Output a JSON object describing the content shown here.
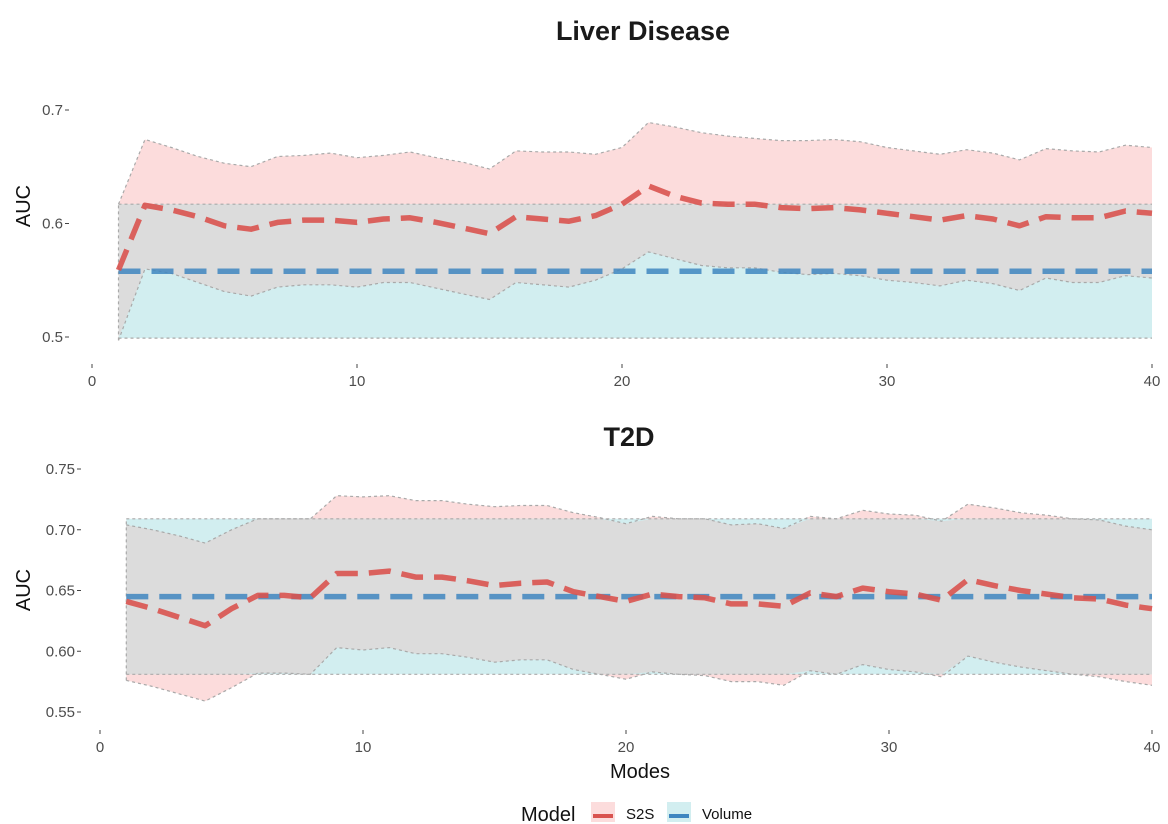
{
  "chart_data": [
    {
      "type": "line",
      "title": "Liver Disease",
      "xlabel": "",
      "ylabel": "AUC",
      "xlim": [
        0,
        40
      ],
      "ylim": [
        0.485,
        0.715
      ],
      "xticks": [
        "0",
        "10",
        "20",
        "30",
        "40"
      ],
      "yticks": [
        "0.5",
        "0.6",
        "0.7"
      ],
      "grid": false,
      "series": [
        {
          "name": "S2S",
          "color": "#d9534f",
          "x": [
            1,
            2,
            3,
            4,
            5,
            6,
            7,
            8,
            9,
            10,
            11,
            12,
            13,
            14,
            15,
            16,
            17,
            18,
            19,
            20,
            21,
            22,
            23,
            24,
            25,
            26,
            27,
            28,
            29,
            30,
            31,
            32,
            33,
            34,
            35,
            36,
            37,
            38,
            39,
            40
          ],
          "mean": [
            0.559,
            0.616,
            0.612,
            0.606,
            0.598,
            0.595,
            0.601,
            0.603,
            0.603,
            0.601,
            0.604,
            0.605,
            0.601,
            0.596,
            0.591,
            0.606,
            0.604,
            0.602,
            0.607,
            0.617,
            0.633,
            0.624,
            0.618,
            0.617,
            0.617,
            0.614,
            0.613,
            0.614,
            0.612,
            0.609,
            0.606,
            0.603,
            0.607,
            0.604,
            0.598,
            0.606,
            0.605,
            0.605,
            0.611,
            0.609
          ],
          "upper": [
            0.617,
            0.674,
            0.667,
            0.659,
            0.653,
            0.65,
            0.659,
            0.66,
            0.662,
            0.658,
            0.66,
            0.663,
            0.658,
            0.654,
            0.648,
            0.664,
            0.663,
            0.663,
            0.661,
            0.667,
            0.689,
            0.685,
            0.68,
            0.677,
            0.675,
            0.673,
            0.673,
            0.674,
            0.672,
            0.667,
            0.664,
            0.661,
            0.665,
            0.662,
            0.656,
            0.666,
            0.664,
            0.663,
            0.669,
            0.667
          ],
          "lower": [
            0.497,
            0.56,
            0.556,
            0.548,
            0.54,
            0.536,
            0.544,
            0.546,
            0.546,
            0.544,
            0.548,
            0.548,
            0.543,
            0.538,
            0.533,
            0.548,
            0.546,
            0.544,
            0.55,
            0.56,
            0.575,
            0.569,
            0.563,
            0.561,
            0.561,
            0.557,
            0.555,
            0.556,
            0.554,
            0.55,
            0.548,
            0.545,
            0.55,
            0.547,
            0.541,
            0.552,
            0.548,
            0.548,
            0.554,
            0.552
          ]
        },
        {
          "name": "Volume",
          "color": "#3f86c0",
          "x": [
            1,
            40
          ],
          "mean": [
            0.558,
            0.558
          ],
          "upper": [
            0.617,
            0.617
          ],
          "lower": [
            0.499,
            0.499
          ]
        }
      ]
    },
    {
      "type": "line",
      "title": "T2D",
      "xlabel": "Modes",
      "ylabel": "AUC",
      "xlim": [
        0,
        40
      ],
      "ylim": [
        0.545,
        0.755
      ],
      "xticks": [
        "0",
        "10",
        "20",
        "30",
        "40"
      ],
      "yticks": [
        "0.55",
        "0.60",
        "0.65",
        "0.70",
        "0.75"
      ],
      "grid": false,
      "series": [
        {
          "name": "S2S",
          "color": "#d9534f",
          "x": [
            1,
            2,
            3,
            4,
            5,
            6,
            7,
            8,
            9,
            10,
            11,
            12,
            13,
            14,
            15,
            16,
            17,
            18,
            19,
            20,
            21,
            22,
            23,
            24,
            25,
            26,
            27,
            28,
            29,
            30,
            31,
            32,
            33,
            34,
            35,
            36,
            37,
            38,
            39,
            40
          ],
          "mean": [
            0.641,
            0.635,
            0.628,
            0.621,
            0.635,
            0.646,
            0.646,
            0.644,
            0.664,
            0.664,
            0.666,
            0.661,
            0.661,
            0.658,
            0.654,
            0.656,
            0.657,
            0.649,
            0.645,
            0.641,
            0.647,
            0.645,
            0.644,
            0.639,
            0.639,
            0.637,
            0.648,
            0.645,
            0.652,
            0.649,
            0.647,
            0.642,
            0.659,
            0.654,
            0.65,
            0.647,
            0.644,
            0.643,
            0.638,
            0.635
          ],
          "upper": [
            0.704,
            0.7,
            0.695,
            0.689,
            0.7,
            0.709,
            0.709,
            0.709,
            0.728,
            0.727,
            0.728,
            0.724,
            0.724,
            0.721,
            0.719,
            0.72,
            0.72,
            0.714,
            0.71,
            0.705,
            0.711,
            0.709,
            0.709,
            0.704,
            0.705,
            0.701,
            0.711,
            0.709,
            0.716,
            0.713,
            0.712,
            0.707,
            0.721,
            0.718,
            0.714,
            0.712,
            0.709,
            0.708,
            0.703,
            0.7
          ],
          "lower": [
            0.576,
            0.571,
            0.565,
            0.559,
            0.57,
            0.582,
            0.582,
            0.581,
            0.603,
            0.601,
            0.603,
            0.598,
            0.598,
            0.595,
            0.591,
            0.593,
            0.593,
            0.585,
            0.581,
            0.577,
            0.583,
            0.581,
            0.58,
            0.575,
            0.575,
            0.572,
            0.584,
            0.581,
            0.589,
            0.585,
            0.583,
            0.579,
            0.596,
            0.591,
            0.587,
            0.584,
            0.581,
            0.579,
            0.575,
            0.572
          ]
        },
        {
          "name": "Volume",
          "color": "#3f86c0",
          "x": [
            1,
            40
          ],
          "mean": [
            0.645,
            0.645
          ],
          "upper": [
            0.709,
            0.709
          ],
          "lower": [
            0.581,
            0.581
          ]
        }
      ]
    }
  ],
  "legend": {
    "title": "Model",
    "items": [
      {
        "name": "S2S",
        "line_color": "#d9534f",
        "fill_color": "#fcdcdc"
      },
      {
        "name": "Volume",
        "line_color": "#3f86c0",
        "fill_color": "#d2eef0"
      }
    ]
  },
  "colors": {
    "s2s_line": "#d9534f",
    "s2s_fill": "#fcdcdc",
    "volume_line": "#3f86c0",
    "volume_fill": "#d2eef0",
    "overlap_fill": "#dcdcdc"
  }
}
